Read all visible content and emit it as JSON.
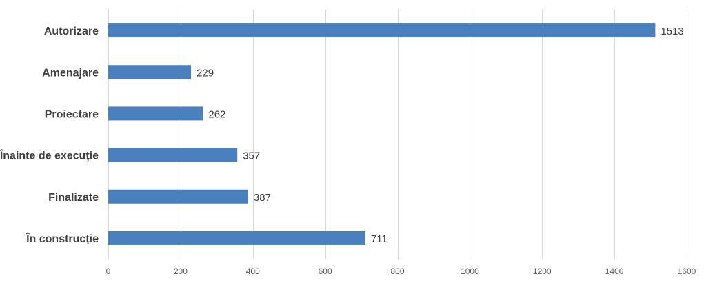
{
  "chart_data": {
    "type": "bar",
    "orientation": "horizontal",
    "categories": [
      "Autorizare",
      "Amenajare",
      "Proiectare",
      "Înainte de execuție",
      "Finalizate",
      "În construcție"
    ],
    "values": [
      1513,
      229,
      262,
      357,
      387,
      711
    ],
    "xlim": [
      0,
      1600
    ],
    "xticks": [
      0,
      200,
      400,
      600,
      800,
      1000,
      1200,
      1400,
      1600
    ],
    "grid": true,
    "data_labels": true,
    "title": "",
    "xlabel": "",
    "ylabel": "",
    "bar_color": "#4a80bd"
  }
}
